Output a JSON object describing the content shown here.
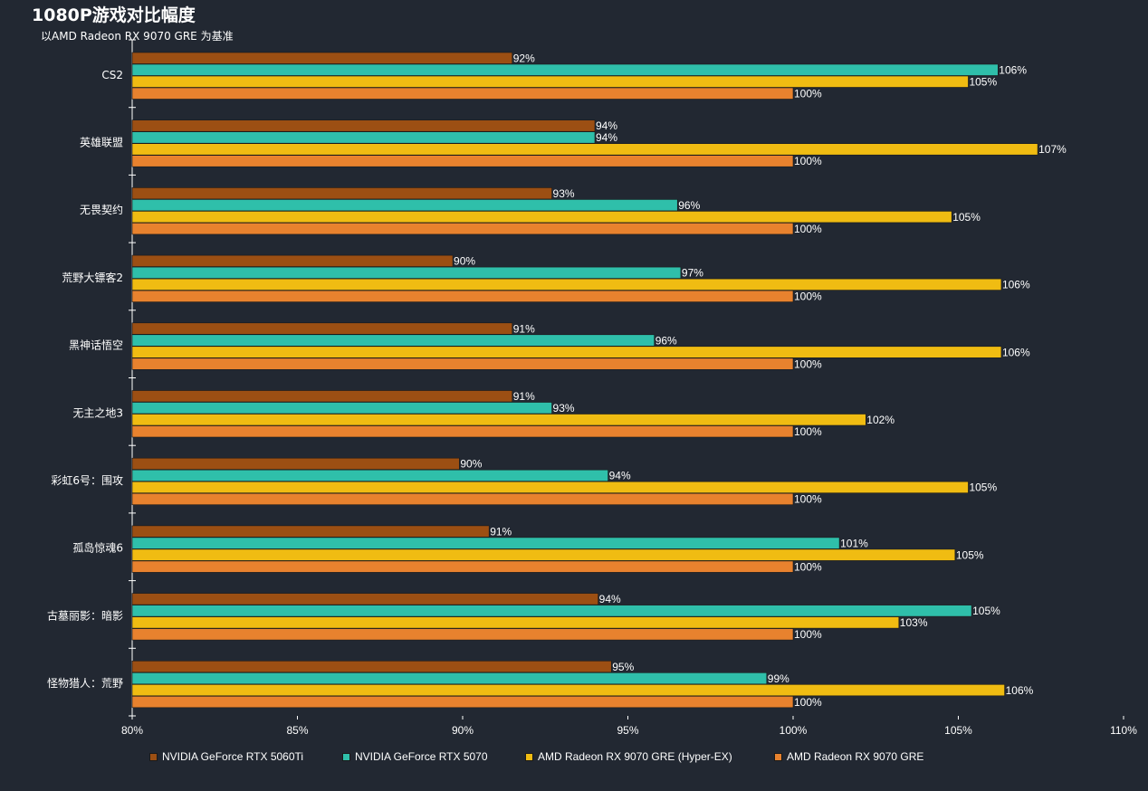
{
  "chart_data": {
    "type": "bar",
    "orientation": "horizontal",
    "title": "1080P游戏对比幅度",
    "subtitle": "以AMD Radeon RX 9070 GRE 为基准",
    "categories": [
      "CS2",
      "英雄联盟",
      "无畏契约",
      "荒野大镖客2",
      "黑神话悟空",
      "无主之地3",
      "彩虹6号：围攻",
      "孤岛惊魂6",
      "古墓丽影：暗影",
      "怪物猎人：荒野"
    ],
    "series": [
      {
        "name": "NVIDIA GeForce RTX 5060Ti",
        "color": "#9c4f13",
        "values": [
          91.5,
          94,
          92.7,
          89.7,
          91.5,
          91.5,
          89.9,
          90.8,
          94.1,
          94.5
        ],
        "labels": [
          "92%",
          "94%",
          "93%",
          "90%",
          "91%",
          "91%",
          "90%",
          "91%",
          "94%",
          "95%"
        ]
      },
      {
        "name": "NVIDIA GeForce RTX 5070",
        "color": "#2fbfaa",
        "values": [
          106.2,
          94,
          96.5,
          96.6,
          95.8,
          92.7,
          94.4,
          101.4,
          105.4,
          99.2
        ],
        "labels": [
          "106%",
          "94%",
          "96%",
          "97%",
          "96%",
          "93%",
          "94%",
          "101%",
          "105%",
          "99%"
        ]
      },
      {
        "name": "AMD Radeon RX 9070 GRE (Hyper-EX)",
        "color": "#f0bc12",
        "values": [
          105.3,
          107.4,
          104.8,
          106.3,
          106.3,
          102.2,
          105.3,
          104.9,
          103.2,
          106.4
        ],
        "labels": [
          "105%",
          "107%",
          "105%",
          "106%",
          "106%",
          "102%",
          "105%",
          "105%",
          "103%",
          "106%"
        ]
      },
      {
        "name": "AMD Radeon RX 9070 GRE",
        "color": "#e8822e",
        "values": [
          100,
          100,
          100,
          100,
          100,
          100,
          100,
          100,
          100,
          100
        ],
        "labels": [
          "100%",
          "100%",
          "100%",
          "100%",
          "100%",
          "100%",
          "100%",
          "100%",
          "100%",
          "100%"
        ]
      }
    ],
    "xlim": [
      80,
      110
    ],
    "xticks": [
      80,
      85,
      90,
      95,
      100,
      105,
      110
    ],
    "xtick_labels": [
      "80%",
      "85%",
      "90%",
      "95%",
      "100%",
      "105%",
      "110%"
    ],
    "grid": false,
    "legend_position": "bottom",
    "background": "#222832"
  }
}
